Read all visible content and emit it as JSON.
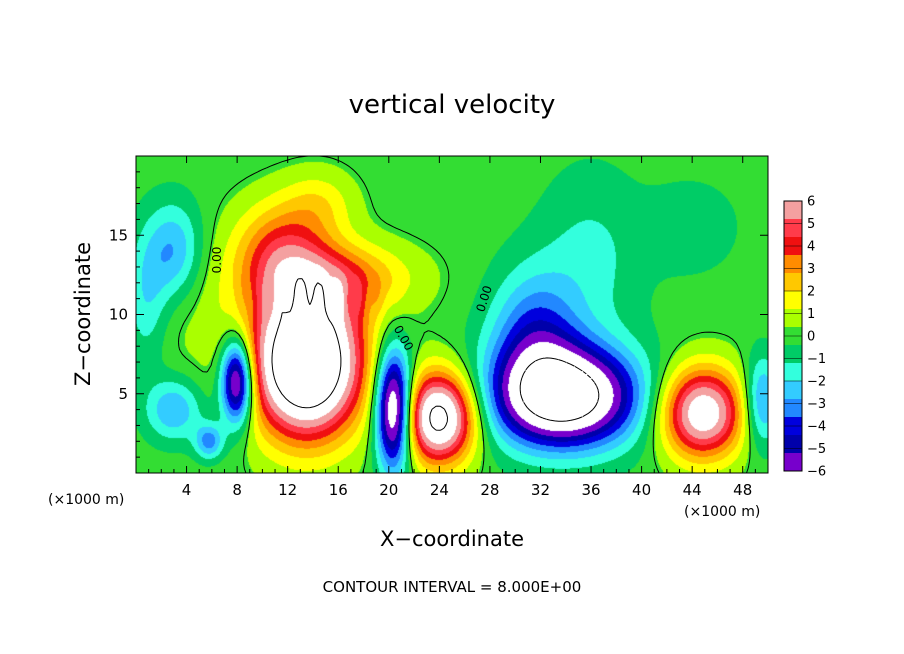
{
  "chart_data": {
    "type": "heatmap",
    "title": "vertical velocity",
    "xlabel": "X−coordinate",
    "ylabel": "Z−coordinate",
    "x_unit_left": "(×1000 m)",
    "x_unit_right": "(×1000 m)",
    "xlim": [
      0,
      50
    ],
    "ylim": [
      0,
      20
    ],
    "x_ticks": [
      4,
      8,
      12,
      16,
      20,
      24,
      28,
      32,
      36,
      40,
      44,
      48
    ],
    "x_tick_labels": [
      "4",
      "8",
      "12",
      "16",
      "20",
      "24",
      "28",
      "32",
      "36",
      "40",
      "44",
      "48"
    ],
    "y_ticks": [
      5,
      10,
      15
    ],
    "y_tick_labels": [
      "5",
      "10",
      "15"
    ],
    "contour_interval_note": "CONTOUR INTERVAL = 8.000E+00",
    "contour_labels": [
      "0.00",
      "0.00",
      "0.00"
    ],
    "colorbar": {
      "min": -6,
      "max": 6,
      "tick_values": [
        6,
        5,
        4,
        3,
        2,
        1,
        0,
        -1,
        -2,
        -3,
        -4,
        -5,
        -6
      ],
      "tick_labels": [
        "6",
        "5",
        "4",
        "3",
        "2",
        "1",
        "0",
        "−1",
        "−2",
        "−3",
        "−4",
        "−5",
        "−6"
      ],
      "colors": [
        "#f4a0a0",
        "#ff3b4a",
        "#f01010",
        "#ff8c00",
        "#ffc800",
        "#ffff00",
        "#aaff00",
        "#33dd33",
        "#00cc66",
        "#33ffdd",
        "#33ccff",
        "#2288ff",
        "#0000dd",
        "#0000aa",
        "#7700cc"
      ],
      "saturation_color": "#ffffff"
    },
    "features": [
      {
        "kind": "updraft",
        "x": 13.5,
        "z": 7.0,
        "sx": 3.0,
        "sz": 3.2,
        "amp": 12
      },
      {
        "kind": "updraft",
        "x": 11.5,
        "z": 14.0,
        "sx": 2.6,
        "sz": 2.2,
        "amp": 3.6
      },
      {
        "kind": "updraft",
        "x": 16.0,
        "z": 12.2,
        "sx": 4.0,
        "sz": 1.6,
        "amp": 3.2
      },
      {
        "kind": "updraft",
        "x": 24.0,
        "z": 3.5,
        "sx": 2.0,
        "sz": 2.0,
        "amp": 9
      },
      {
        "kind": "updraft",
        "x": 44.8,
        "z": 3.8,
        "sx": 2.3,
        "sz": 2.0,
        "amp": 7.5
      },
      {
        "kind": "updraft",
        "x": 14.5,
        "z": 17.0,
        "sx": 2.0,
        "sz": 1.5,
        "amp": 1.5
      },
      {
        "kind": "updraft",
        "x": 5.0,
        "z": 10.0,
        "sx": 4.0,
        "sz": 3.0,
        "amp": 0.6
      },
      {
        "kind": "downdraft",
        "x": 8.0,
        "z": 5.8,
        "sx": 0.9,
        "sz": 1.9,
        "amp": -8
      },
      {
        "kind": "downdraft",
        "x": 20.4,
        "z": 4.0,
        "sx": 1.0,
        "sz": 2.6,
        "amp": -9
      },
      {
        "kind": "downdraft",
        "x": 34.0,
        "z": 4.8,
        "sx": 4.0,
        "sz": 2.2,
        "amp": -9.5
      },
      {
        "kind": "downdraft",
        "x": 31.5,
        "z": 8.5,
        "sx": 2.5,
        "sz": 3.0,
        "amp": -3.6
      },
      {
        "kind": "downdraft",
        "x": 3.0,
        "z": 14.0,
        "sx": 1.5,
        "sz": 2.2,
        "amp": -2.8
      },
      {
        "kind": "downdraft",
        "x": 0.8,
        "z": 11.0,
        "sx": 1.2,
        "sz": 3.0,
        "amp": -2.0
      },
      {
        "kind": "downdraft",
        "x": 3.0,
        "z": 4.0,
        "sx": 1.6,
        "sz": 1.4,
        "amp": -2.8
      },
      {
        "kind": "downdraft",
        "x": 5.8,
        "z": 2.0,
        "sx": 0.8,
        "sz": 0.8,
        "amp": -3.2
      },
      {
        "kind": "downdraft",
        "x": 49.5,
        "z": 4.5,
        "sx": 1.0,
        "sz": 2.0,
        "amp": -3.5
      },
      {
        "kind": "downdraft",
        "x": 36.0,
        "z": 13.5,
        "sx": 3.0,
        "sz": 4.0,
        "amp": -1.4
      },
      {
        "kind": "downdraft",
        "x": 44.0,
        "z": 15.5,
        "sx": 2.5,
        "sz": 2.0,
        "amp": -1.1
      }
    ]
  }
}
